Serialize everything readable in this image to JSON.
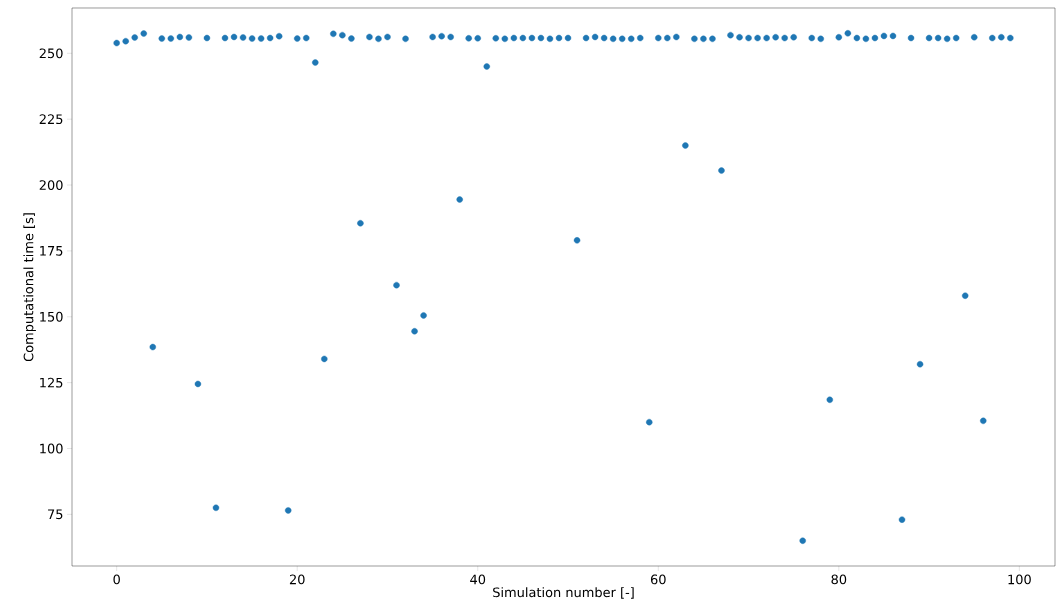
{
  "chart_data": {
    "type": "scatter",
    "xlabel": "Simulation number [-]",
    "ylabel": "Computational time [s]",
    "x": [
      0,
      1,
      2,
      3,
      4,
      5,
      6,
      7,
      8,
      9,
      10,
      11,
      12,
      13,
      14,
      15,
      16,
      17,
      18,
      19,
      20,
      21,
      22,
      23,
      24,
      25,
      26,
      27,
      28,
      29,
      30,
      31,
      32,
      33,
      34,
      35,
      36,
      37,
      38,
      39,
      40,
      41,
      42,
      43,
      44,
      45,
      46,
      47,
      48,
      49,
      50,
      51,
      52,
      53,
      54,
      55,
      56,
      57,
      58,
      59,
      60,
      61,
      62,
      63,
      64,
      65,
      66,
      67,
      68,
      69,
      70,
      71,
      72,
      73,
      74,
      75,
      76,
      77,
      78,
      79,
      80,
      81,
      82,
      83,
      84,
      85,
      86,
      87,
      88,
      89,
      90,
      91,
      92,
      93,
      94,
      95,
      96,
      97,
      98,
      99
    ],
    "values": [
      253.9,
      254.6,
      256,
      257.5,
      138.5,
      255.6,
      255.6,
      256.2,
      256,
      124.5,
      255.8,
      77.5,
      255.8,
      256.2,
      256,
      255.6,
      255.6,
      255.8,
      256.5,
      76.5,
      255.6,
      255.8,
      246.5,
      134,
      257.4,
      256.9,
      255.6,
      185.5,
      256.2,
      255.5,
      256.2,
      162,
      255.5,
      144.5,
      150.5,
      256.2,
      256.5,
      256.2,
      194.5,
      255.7,
      255.7,
      245,
      255.7,
      255.5,
      255.8,
      255.8,
      255.8,
      255.8,
      255.5,
      255.8,
      255.8,
      179,
      255.8,
      256.2,
      255.8,
      255.5,
      255.5,
      255.5,
      255.8,
      110,
      255.8,
      255.8,
      256.2,
      215,
      255.5,
      255.5,
      255.5,
      205.5,
      256.9,
      256.1,
      255.8,
      255.8,
      255.8,
      256.1,
      255.8,
      256.1,
      65,
      255.8,
      255.5,
      118.5,
      256.1,
      257.6,
      255.8,
      255.5,
      255.8,
      256.6,
      256.6,
      73,
      255.8,
      132,
      255.8,
      255.8,
      255.5,
      255.8,
      158,
      256.1,
      110.5,
      255.8,
      256.1,
      255.8
    ],
    "color": "#1f77b4",
    "marker": "circle",
    "xlim": [
      -4.95,
      103.95
    ],
    "ylim": [
      55.4,
      267.2
    ],
    "xticks": [
      0,
      20,
      40,
      60,
      80,
      100
    ],
    "yticks": [
      75,
      100,
      125,
      150,
      175,
      200,
      225,
      250
    ]
  }
}
